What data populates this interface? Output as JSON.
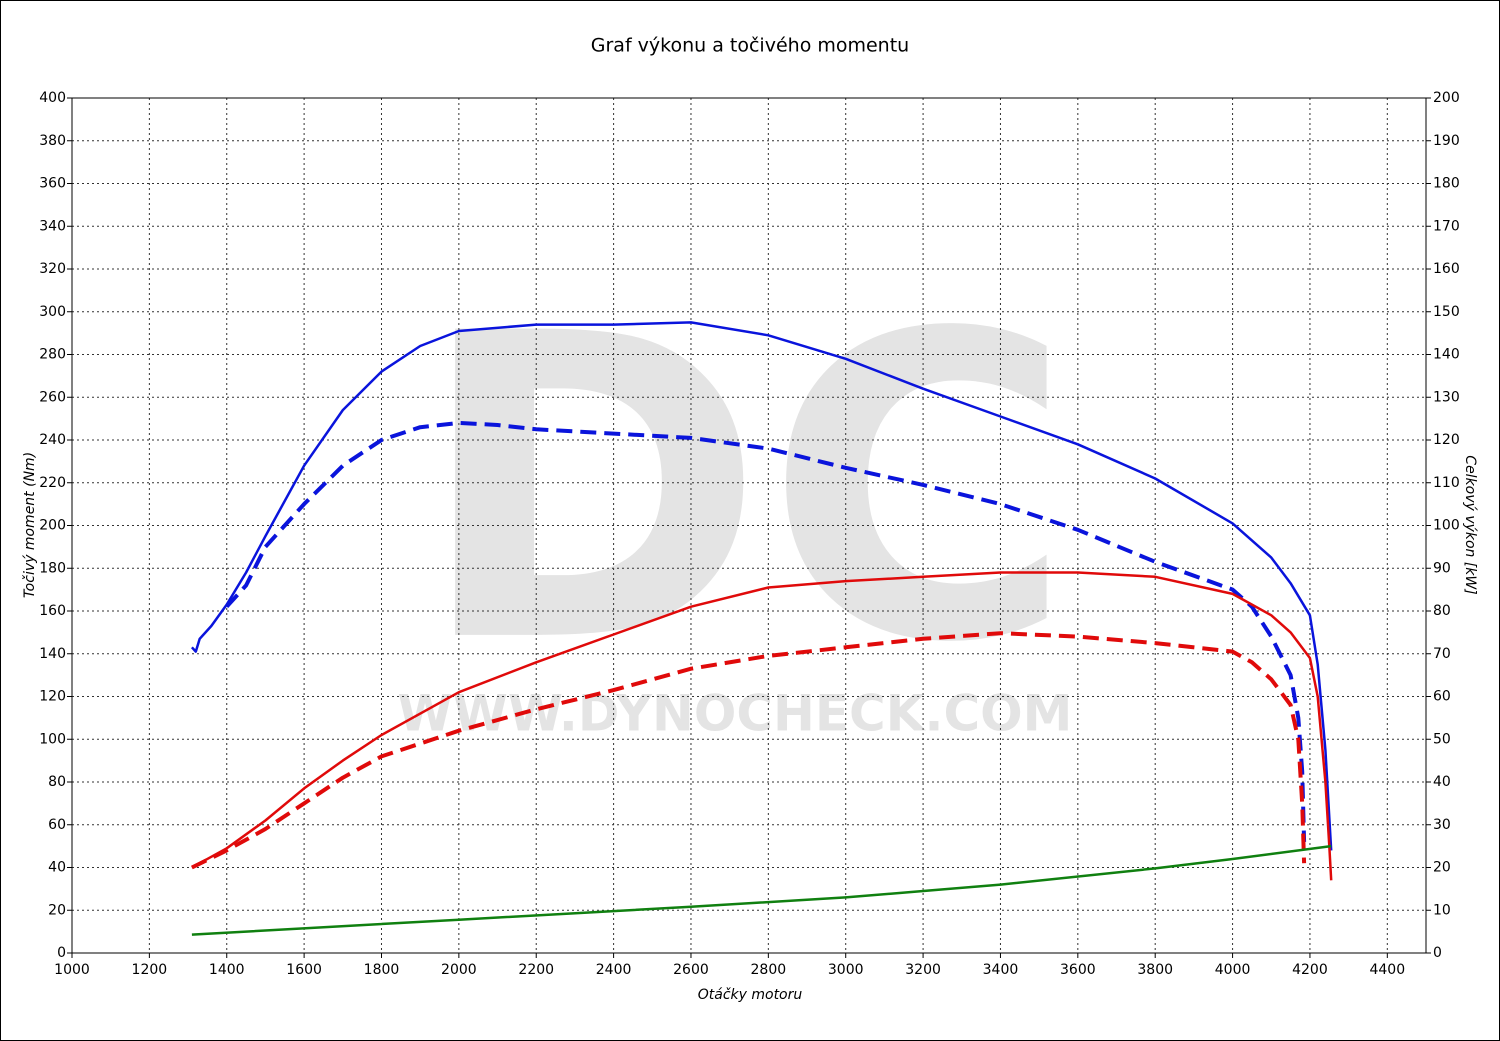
{
  "chart_data": {
    "type": "line",
    "title": "Graf výkonu a točivého momentu",
    "xlabel": "Otáčky motoru",
    "ylabel": "Točivý moment (Nm)",
    "y2label": "Celkový výkon [kW]",
    "watermark": {
      "logo": "DC",
      "url": "WWW.DYNOCHECK.COM"
    },
    "xlim": [
      1000,
      4500
    ],
    "xticks": [
      1000,
      1200,
      1400,
      1600,
      1800,
      2000,
      2200,
      2400,
      2600,
      2800,
      3000,
      3200,
      3400,
      3600,
      3800,
      4000,
      4200,
      4400
    ],
    "ylim": [
      0,
      400
    ],
    "yticks": [
      0,
      20,
      40,
      60,
      80,
      100,
      120,
      140,
      160,
      180,
      200,
      220,
      240,
      260,
      280,
      300,
      320,
      340,
      360,
      380,
      400
    ],
    "y2lim": [
      0,
      200
    ],
    "y2ticks": [
      0,
      10,
      20,
      30,
      40,
      50,
      60,
      70,
      80,
      90,
      100,
      110,
      120,
      130,
      140,
      150,
      160,
      170,
      180,
      190,
      200
    ],
    "grid": true,
    "series": [
      {
        "color": "#0a14dc",
        "dash": false,
        "axis": "y",
        "x": [
          1310,
          1320,
          1330,
          1360,
          1400,
          1450,
          1500,
          1600,
          1700,
          1800,
          1900,
          2000,
          2200,
          2400,
          2600,
          2800,
          3000,
          3200,
          3400,
          3600,
          3800,
          4000,
          4100,
          4150,
          4200,
          4220,
          4240,
          4255
        ],
        "values": [
          143,
          141,
          147,
          153,
          163,
          178,
          195,
          228,
          254,
          272,
          284,
          291,
          294,
          294,
          295,
          289,
          278,
          264,
          251,
          238,
          222,
          201,
          185,
          173,
          158,
          135,
          95,
          48
        ]
      },
      {
        "color": "#0a14dc",
        "dash": true,
        "axis": "y",
        "x": [
          1400,
          1450,
          1500,
          1600,
          1700,
          1800,
          1900,
          2000,
          2100,
          2200,
          2400,
          2600,
          2800,
          3000,
          3200,
          3400,
          3600,
          3800,
          4000,
          4050,
          4100,
          4150,
          4170,
          4180,
          4185
        ],
        "values": [
          162,
          172,
          190,
          210,
          228,
          240,
          246,
          248,
          247,
          245,
          243,
          241,
          236,
          227,
          219,
          210,
          198,
          183,
          170,
          162,
          148,
          130,
          110,
          85,
          52
        ]
      },
      {
        "color": "#e00a0a",
        "dash": false,
        "axis": "y2",
        "x": [
          1310,
          1330,
          1400,
          1500,
          1600,
          1700,
          1800,
          2000,
          2200,
          2400,
          2600,
          2800,
          3000,
          3200,
          3400,
          3600,
          3800,
          4000,
          4100,
          4150,
          4200,
          4220,
          4240,
          4250,
          4255
        ],
        "values": [
          20,
          21,
          24.5,
          31,
          38.5,
          45,
          51,
          61,
          68,
          74.5,
          81,
          85.5,
          87,
          88,
          89,
          89,
          88,
          84,
          79,
          75,
          69,
          60,
          40,
          25,
          17
        ]
      },
      {
        "color": "#e00a0a",
        "dash": true,
        "axis": "y2",
        "x": [
          1310,
          1400,
          1500,
          1600,
          1700,
          1800,
          2000,
          2200,
          2400,
          2600,
          2800,
          3000,
          3200,
          3400,
          3600,
          3800,
          4000,
          4050,
          4100,
          4150,
          4170,
          4180,
          4185
        ],
        "values": [
          20,
          24,
          29,
          35,
          41,
          46,
          52,
          57,
          61.5,
          66.5,
          69.5,
          71.5,
          73.5,
          74.8,
          74,
          72.5,
          70.5,
          68,
          64,
          58,
          50,
          35,
          21
        ]
      },
      {
        "color": "#108010",
        "dash": false,
        "axis": "y2",
        "x": [
          1310,
          2000,
          2600,
          3000,
          3400,
          3800,
          4000,
          4255
        ],
        "values": [
          4.3,
          7.8,
          10.8,
          13,
          16,
          19.8,
          22,
          25
        ]
      }
    ]
  }
}
